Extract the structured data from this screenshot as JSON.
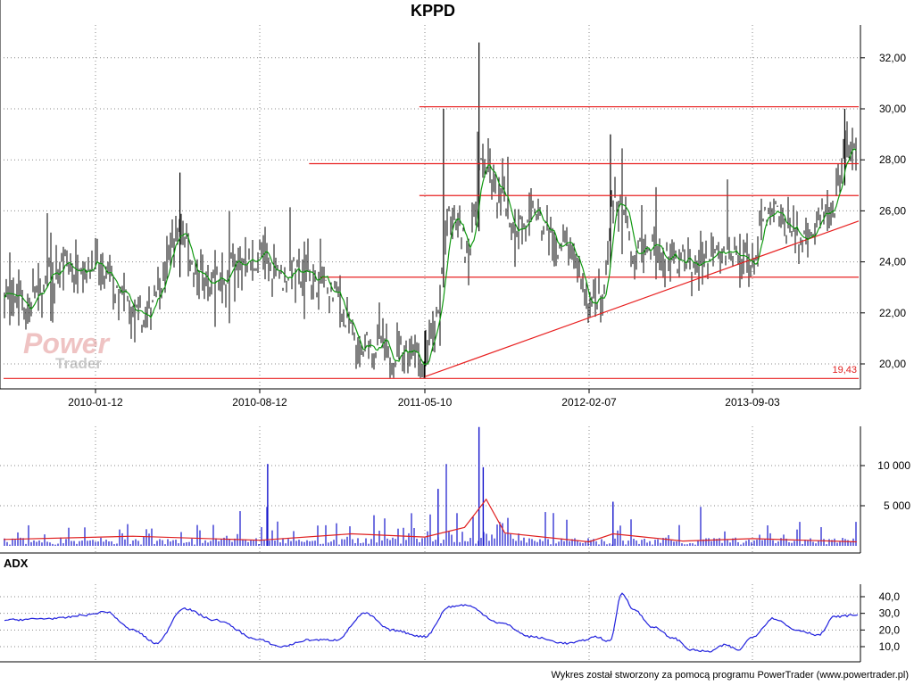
{
  "title": "KPPD",
  "colors": {
    "price_bars": "#000000",
    "moving_average": "#119911",
    "trend_lines": "#e82020",
    "volume_bars": "#1414cc",
    "volume_average": "#e02020",
    "adx_line": "#2020dd",
    "grid": "#888888",
    "axis": "#000000",
    "watermark": "#e8a8a8"
  },
  "watermark": {
    "line1": "Power",
    "line2": "Trader"
  },
  "footer": "Wykres został stworzony za pomocą programu PowerTrader (www.powertrader.pl)",
  "chart_data": [
    {
      "type": "line",
      "panel": "price",
      "title": "KPPD",
      "x_ticks": [
        "2010-01-12",
        "2010-08-12",
        "2011-05-10",
        "2012-02-07",
        "2013-09-03"
      ],
      "y_ticks": [
        "20,00",
        "22,00",
        "24,00",
        "26,00",
        "28,00",
        "30,00",
        "32,00"
      ],
      "ylim": [
        19.4,
        32.6
      ],
      "grid": true,
      "min_label": "19,43",
      "series": [
        {
          "points": [
            [
              "2009-10-01",
              22.8
            ],
            [
              "2009-11-01",
              22.3
            ],
            [
              "2009-12-01",
              23.8
            ],
            [
              "2010-01-12",
              23.9
            ],
            [
              "2010-02-15",
              22.6
            ],
            [
              "2010-03-15",
              21.6
            ],
            [
              "2010-04-10",
              23.5
            ],
            [
              "2010-05-01",
              25.6
            ],
            [
              "2010-05-20",
              23.5
            ],
            [
              "2010-06-15",
              23.0
            ],
            [
              "2010-07-10",
              23.8
            ],
            [
              "2010-08-12",
              24.3
            ],
            [
              "2010-09-15",
              23.5
            ],
            [
              "2010-10-20",
              23.6
            ],
            [
              "2010-11-20",
              23.3
            ],
            [
              "2010-12-20",
              22.5
            ],
            [
              "2011-01-20",
              20.5
            ],
            [
              "2011-02-20",
              20.8
            ],
            [
              "2011-03-20",
              20.2
            ],
            [
              "2011-04-10",
              20.8
            ],
            [
              "2011-05-10",
              20.0
            ],
            [
              "2011-06-01",
              22.0
            ],
            [
              "2011-06-20",
              26.0
            ],
            [
              "2011-07-10",
              25.0
            ],
            [
              "2011-07-25",
              24.6
            ],
            [
              "2011-08-10",
              28.0
            ],
            [
              "2011-09-10",
              26.8
            ],
            [
              "2011-10-10",
              25.2
            ],
            [
              "2011-11-10",
              25.9
            ],
            [
              "2011-12-10",
              24.8
            ],
            [
              "2012-01-10",
              24.4
            ],
            [
              "2012-02-07",
              22.4
            ],
            [
              "2012-03-01",
              22.3
            ],
            [
              "2012-04-01",
              22.8
            ],
            [
              "2012-04-25",
              26.3
            ],
            [
              "2012-05-15",
              26.5
            ],
            [
              "2012-06-20",
              25.5
            ],
            [
              "2012-07-20",
              24.1
            ],
            [
              "2012-09-01",
              24.8
            ],
            [
              "2012-11-01",
              24.2
            ],
            [
              "2013-01-01",
              24.0
            ],
            [
              "2013-03-01",
              23.9
            ],
            [
              "2013-05-01",
              24.6
            ],
            [
              "2013-07-01",
              24.2
            ],
            [
              "2013-09-03",
              23.9
            ],
            [
              "2013-10-01",
              25.9
            ],
            [
              "2013-11-01",
              25.6
            ],
            [
              "2013-12-15",
              24.9
            ],
            [
              "2014-01-15",
              25.5
            ],
            [
              "2014-02-15",
              26.1
            ],
            [
              "2014-03-10",
              28.6
            ],
            [
              "2014-04-01",
              27.9
            ]
          ]
        }
      ],
      "horizontal_lines": [
        {
          "y": 30.08,
          "from": "2011-05-01",
          "to": "2014-04-05"
        },
        {
          "y": 27.85,
          "from": "2010-11-01",
          "to": "2014-04-05"
        },
        {
          "y": 26.6,
          "from": "2011-05-01",
          "to": "2014-04-05"
        },
        {
          "y": 23.4,
          "from": "2010-11-20",
          "to": "2014-04-05"
        },
        {
          "y": 19.43,
          "from": "2009-10-01",
          "to": "2014-04-05"
        }
      ],
      "trendline": {
        "from": [
          "2011-05-10",
          19.5
        ],
        "to": [
          "2014-04-05",
          25.6
        ]
      }
    },
    {
      "type": "bar",
      "panel": "volume",
      "y_ticks": [
        "5 000",
        "10 000"
      ],
      "ylim": [
        0,
        15000
      ],
      "grid": true,
      "spikes": [
        {
          "x": "2010-08-25",
          "value": 10200
        },
        {
          "x": "2011-06-01",
          "value": 7100
        },
        {
          "x": "2011-08-08",
          "value": 14800
        },
        {
          "x": "2011-08-15",
          "value": 9800
        },
        {
          "x": "2012-05-01",
          "value": 5500
        }
      ],
      "average": [
        [
          "2009-10-01",
          800
        ],
        [
          "2010-03-01",
          1200
        ],
        [
          "2010-08-12",
          700
        ],
        [
          "2011-01-10",
          1500
        ],
        [
          "2011-05-10",
          1100
        ],
        [
          "2011-07-15",
          2300
        ],
        [
          "2011-08-20",
          5800
        ],
        [
          "2011-09-20",
          1600
        ],
        [
          "2012-02-07",
          500
        ],
        [
          "2012-05-01",
          1500
        ],
        [
          "2013-01-01",
          600
        ],
        [
          "2013-09-03",
          900
        ],
        [
          "2014-04-01",
          500
        ]
      ]
    },
    {
      "type": "line",
      "panel": "adx",
      "title": "ADX",
      "y_ticks": [
        "10,0",
        "20,0",
        "30,0",
        "40,0"
      ],
      "ylim": [
        5,
        45
      ],
      "grid": true,
      "series": [
        {
          "name": "ADX",
          "points": [
            [
              "2009-10-01",
              26
            ],
            [
              "2009-12-01",
              27
            ],
            [
              "2010-01-01",
              29
            ],
            [
              "2010-01-25",
              31
            ],
            [
              "2010-03-01",
              20
            ],
            [
              "2010-04-01",
              12
            ],
            [
              "2010-05-05",
              33
            ],
            [
              "2010-06-15",
              26
            ],
            [
              "2010-08-12",
              14
            ],
            [
              "2010-09-15",
              10
            ],
            [
              "2010-11-01",
              14
            ],
            [
              "2010-12-15",
              14
            ],
            [
              "2011-02-01",
              30
            ],
            [
              "2011-03-15",
              20
            ],
            [
              "2011-05-10",
              16
            ],
            [
              "2011-06-20",
              34
            ],
            [
              "2011-07-15",
              35
            ],
            [
              "2011-09-15",
              24
            ],
            [
              "2011-11-01",
              16
            ],
            [
              "2012-01-01",
              12
            ],
            [
              "2012-03-01",
              16
            ],
            [
              "2012-04-20",
              13
            ],
            [
              "2012-06-01",
              42
            ],
            [
              "2012-07-15",
              32
            ],
            [
              "2012-09-15",
              22
            ],
            [
              "2012-12-01",
              15
            ],
            [
              "2013-02-01",
              8
            ],
            [
              "2013-04-01",
              7
            ],
            [
              "2013-06-01",
              11
            ],
            [
              "2013-07-15",
              8
            ],
            [
              "2013-09-03",
              16
            ],
            [
              "2013-10-15",
              27
            ],
            [
              "2013-12-01",
              20
            ],
            [
              "2014-01-15",
              17
            ],
            [
              "2014-02-15",
              28
            ],
            [
              "2014-04-01",
              29
            ]
          ]
        }
      ]
    }
  ]
}
